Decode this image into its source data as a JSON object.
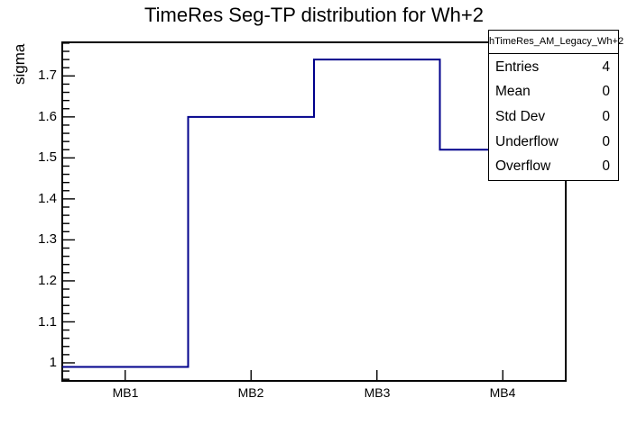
{
  "stats_box": {
    "header": "hTimeRes_AM_Legacy_Wh+2",
    "rows": [
      {
        "label": "Entries",
        "value": "4"
      },
      {
        "label": "Mean",
        "value": "0"
      },
      {
        "label": "Std Dev",
        "value": "0"
      },
      {
        "label": "Underflow",
        "value": "0"
      },
      {
        "label": "Overflow",
        "value": "0"
      }
    ]
  },
  "chart_data": {
    "type": "bar",
    "style": "step-histogram-outline",
    "title": "TimeRes Seg-TP distribution for Wh+2",
    "xlabel": "",
    "ylabel": "sigma",
    "categories": [
      "MB1",
      "MB2",
      "MB3",
      "MB4"
    ],
    "values": [
      0.99,
      1.6,
      1.74,
      1.52
    ],
    "ylim": [
      0.956,
      1.782
    ],
    "y_major_ticks": [
      1.0,
      1.1,
      1.2,
      1.3,
      1.4,
      1.5,
      1.6,
      1.7
    ],
    "y_tick_labels": [
      "1",
      "1.1",
      "1.2",
      "1.3",
      "1.4",
      "1.5",
      "1.6",
      "1.7"
    ],
    "y_minor_tick_step": 0.02,
    "grid": false,
    "legend": false,
    "line_color": "#00008b"
  },
  "colors": {
    "histogram_line": "#00008b",
    "axis": "#000000",
    "background": "#ffffff",
    "stats_border": "#000000"
  }
}
